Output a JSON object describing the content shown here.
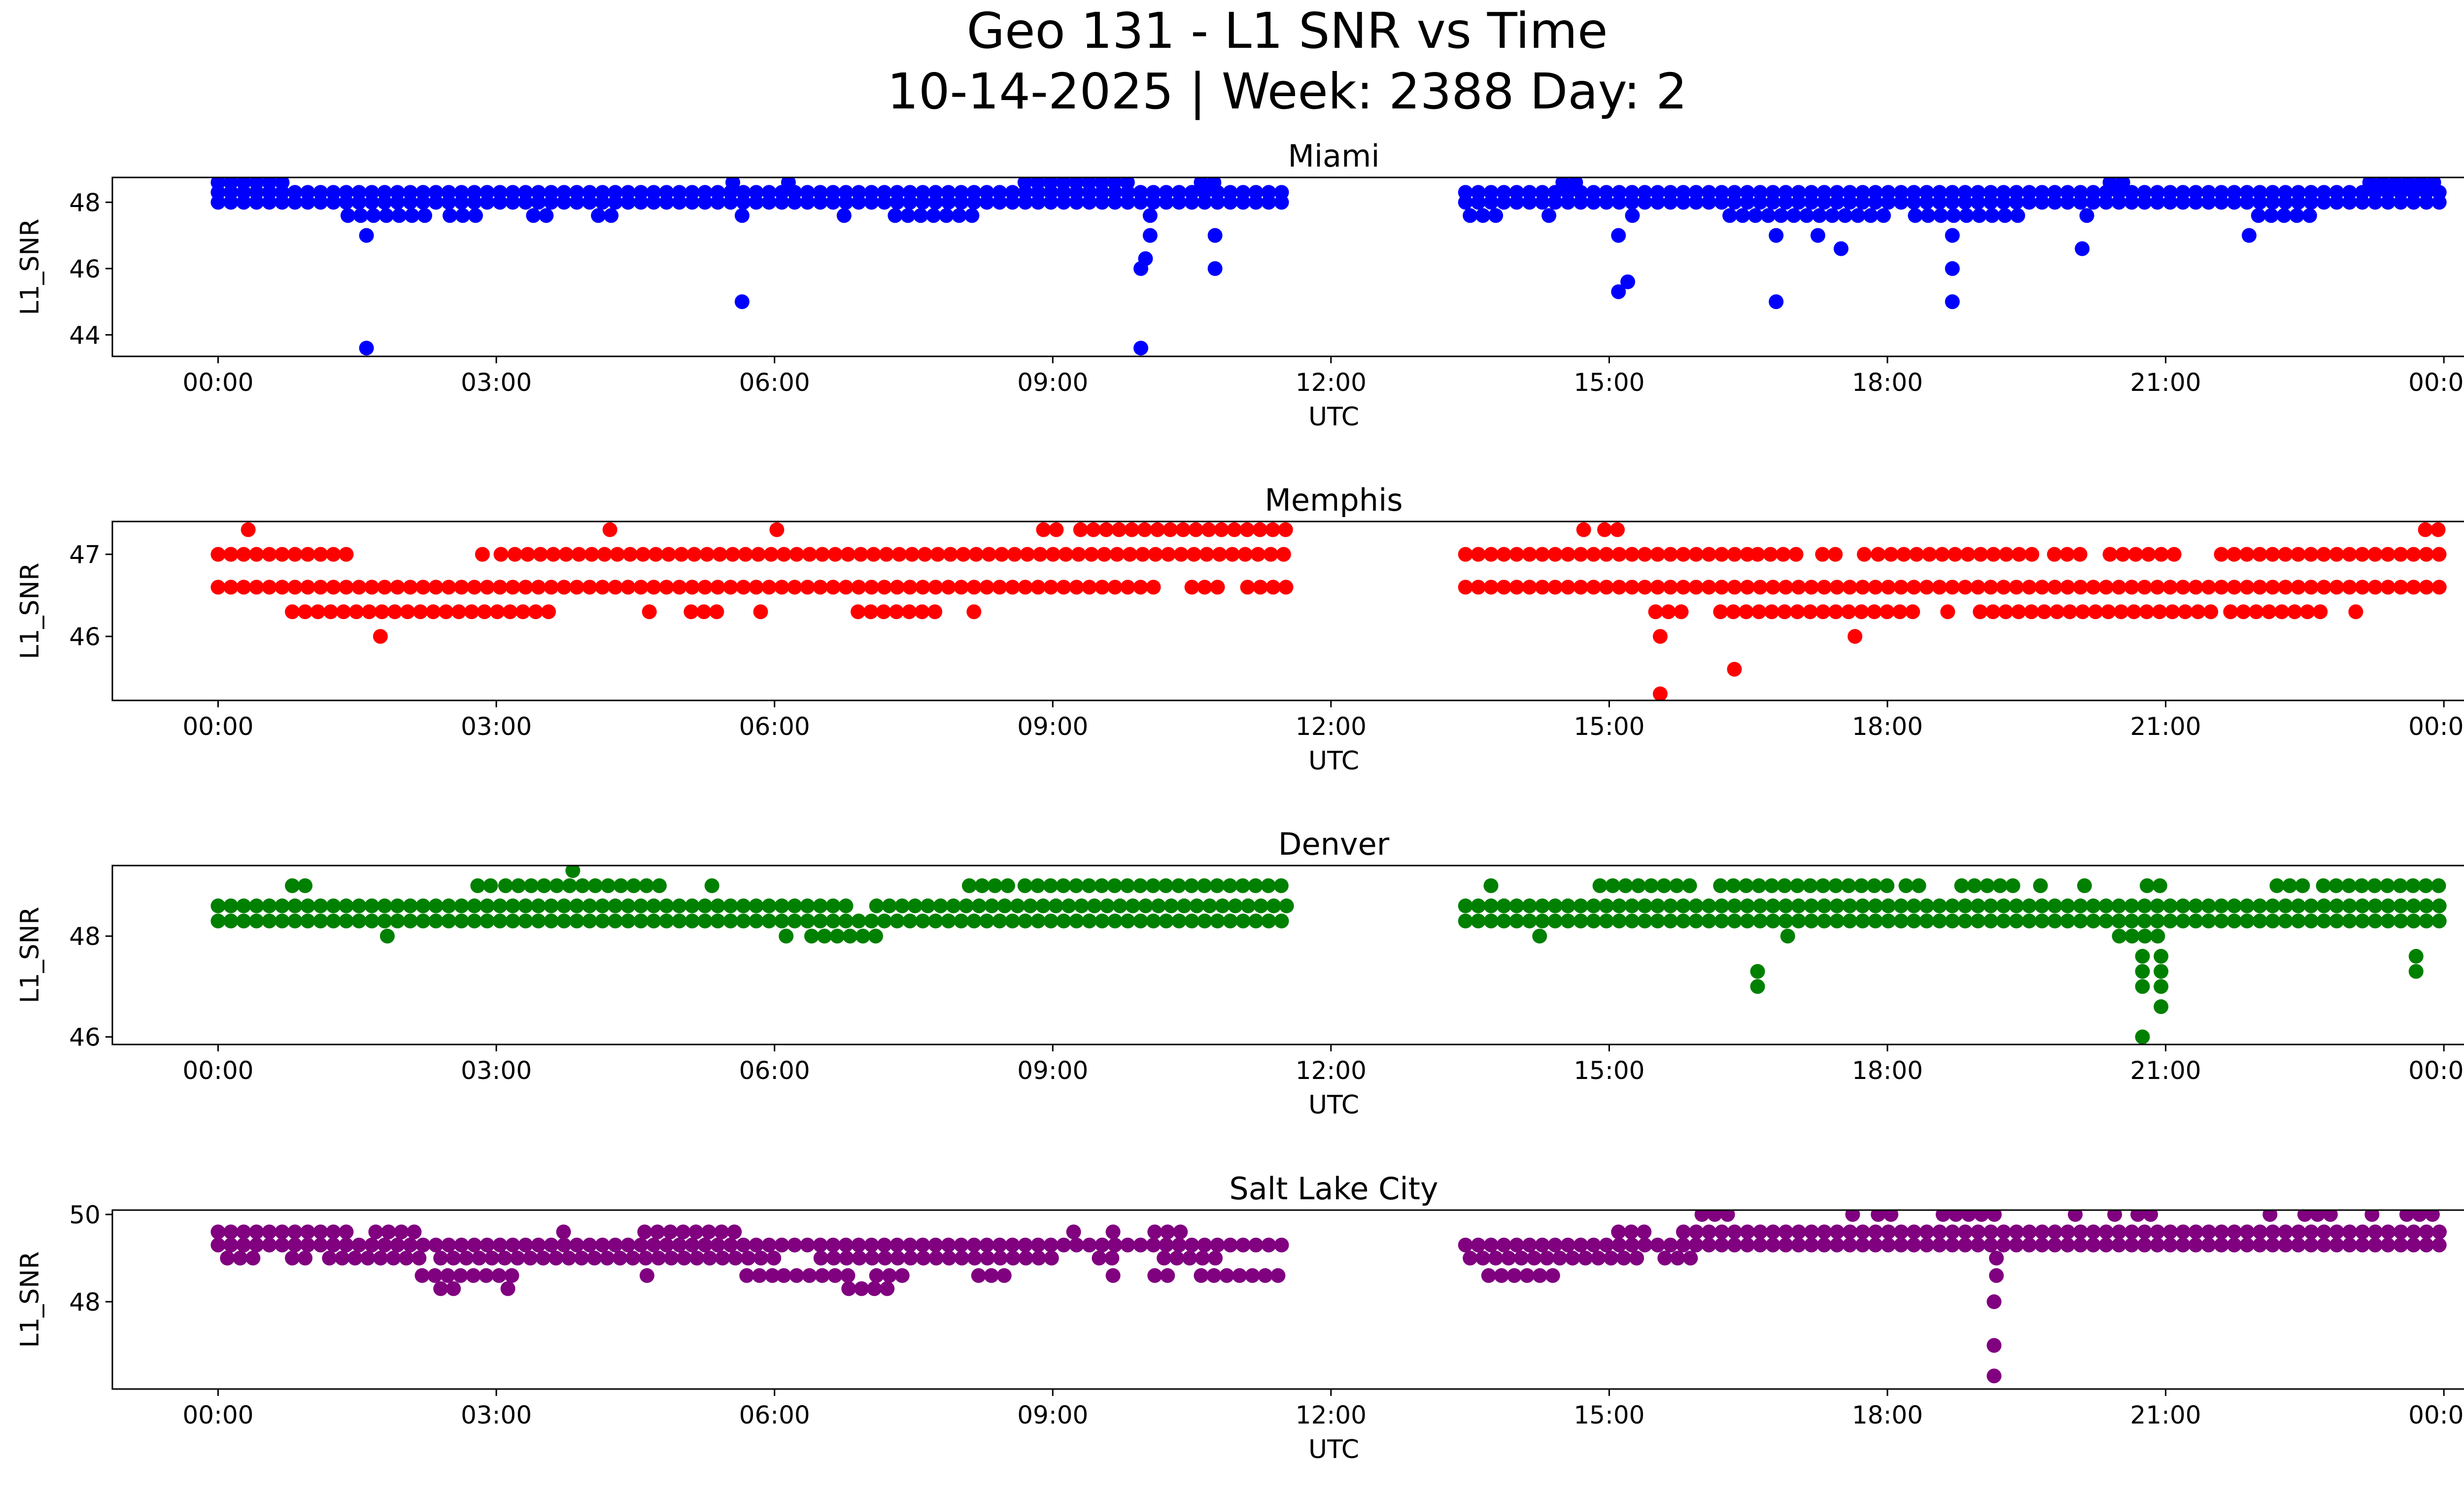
{
  "figure": {
    "title_line1": "Geo 131 - L1 SNR vs Time",
    "title_line2": "10-14-2025 | Week: 2388 Day: 2"
  },
  "chart_data": [
    {
      "type": "scatter",
      "title": "Miami",
      "xlabel": "UTC",
      "ylabel": "L1_SNR",
      "color": "#0000ff",
      "xlim_hours": [
        -1.14,
        25.2
      ],
      "ylim": [
        43.35,
        48.75
      ],
      "yticks": [
        44,
        46,
        48
      ],
      "xtick_labels": [
        "00:00",
        "03:00",
        "06:00",
        "09:00",
        "12:00",
        "15:00",
        "18:00",
        "21:00",
        "00:00"
      ],
      "bands": [
        {
          "value": 48.6,
          "segments": [
            [
              0.0,
              0.75
            ],
            [
              5.5,
              5.6
            ],
            [
              6.1,
              6.2
            ],
            [
              8.7,
              9.9
            ],
            [
              10.6,
              10.8
            ],
            [
              14.5,
              14.7
            ],
            [
              20.4,
              20.6
            ],
            [
              23.2,
              24.0
            ]
          ]
        },
        {
          "value": 48.3,
          "segments": [
            [
              0.0,
              11.55
            ],
            [
              13.45,
              24.0
            ]
          ]
        },
        {
          "value": 48.0,
          "segments": [
            [
              0.0,
              11.55
            ],
            [
              13.45,
              24.0
            ]
          ]
        },
        {
          "value": 47.6,
          "segments": [
            [
              1.4,
              2.3
            ],
            [
              2.5,
              2.9
            ],
            [
              3.4,
              3.6
            ],
            [
              4.1,
              4.3
            ],
            [
              5.6,
              5.7
            ],
            [
              6.7,
              6.8
            ],
            [
              7.3,
              8.2
            ],
            [
              10.0,
              10.1
            ],
            [
              13.5,
              13.8
            ],
            [
              14.3,
              14.4
            ],
            [
              15.2,
              15.3
            ],
            [
              16.3,
              18.0
            ],
            [
              18.3,
              19.5
            ],
            [
              20.1,
              20.2
            ],
            [
              22.0,
              22.6
            ]
          ]
        }
      ],
      "outliers": [
        {
          "t": 1.6,
          "v": 43.6
        },
        {
          "t": 1.6,
          "v": 47.0
        },
        {
          "t": 5.65,
          "v": 45.0
        },
        {
          "t": 9.95,
          "v": 43.6
        },
        {
          "t": 9.95,
          "v": 46.0
        },
        {
          "t": 10.0,
          "v": 46.3
        },
        {
          "t": 10.05,
          "v": 47.0
        },
        {
          "t": 10.75,
          "v": 46.0
        },
        {
          "t": 10.75,
          "v": 47.0
        },
        {
          "t": 15.1,
          "v": 45.3
        },
        {
          "t": 15.2,
          "v": 45.6
        },
        {
          "t": 15.1,
          "v": 47.0
        },
        {
          "t": 16.8,
          "v": 45.0
        },
        {
          "t": 16.8,
          "v": 47.0
        },
        {
          "t": 17.25,
          "v": 47.0
        },
        {
          "t": 17.5,
          "v": 46.6
        },
        {
          "t": 18.7,
          "v": 45.0
        },
        {
          "t": 18.7,
          "v": 46.0
        },
        {
          "t": 18.7,
          "v": 47.0
        },
        {
          "t": 20.1,
          "v": 46.6
        },
        {
          "t": 21.9,
          "v": 47.0
        }
      ]
    },
    {
      "type": "scatter",
      "title": "Memphis",
      "xlabel": "UTC",
      "ylabel": "L1_SNR",
      "color": "#ff0000",
      "xlim_hours": [
        -1.14,
        25.2
      ],
      "ylim": [
        45.22,
        47.4
      ],
      "yticks": [
        46,
        47
      ],
      "xtick_labels": [
        "00:00",
        "03:00",
        "06:00",
        "09:00",
        "12:00",
        "15:00",
        "18:00",
        "21:00",
        "00:00"
      ],
      "bands": [
        {
          "value": 47.3,
          "segments": [
            [
              0.3,
              0.35
            ],
            [
              4.2,
              4.25
            ],
            [
              6.0,
              6.05
            ],
            [
              8.9,
              9.1
            ],
            [
              9.3,
              11.55
            ],
            [
              14.7,
              14.75
            ],
            [
              14.95,
              15.15
            ],
            [
              23.8,
              24.0
            ]
          ]
        },
        {
          "value": 47.0,
          "segments": [
            [
              0.0,
              1.4
            ],
            [
              2.8,
              2.9
            ],
            [
              3.0,
              3.1
            ],
            [
              3.2,
              11.55
            ],
            [
              13.45,
              16.5
            ],
            [
              16.6,
              17.1
            ],
            [
              17.3,
              17.5
            ],
            [
              17.7,
              17.8
            ],
            [
              17.9,
              19.6
            ],
            [
              19.8,
              20.1
            ],
            [
              20.4,
              21.2
            ],
            [
              21.6,
              24.0
            ]
          ]
        },
        {
          "value": 46.6,
          "segments": [
            [
              0.0,
              10.1
            ],
            [
              10.5,
              10.9
            ],
            [
              11.1,
              11.55
            ],
            [
              13.45,
              24.0
            ]
          ]
        },
        {
          "value": 46.3,
          "segments": [
            [
              0.8,
              3.6
            ],
            [
              4.6,
              4.7
            ],
            [
              5.1,
              5.4
            ],
            [
              5.8,
              5.9
            ],
            [
              6.9,
              7.8
            ],
            [
              8.1,
              8.2
            ],
            [
              15.5,
              15.8
            ],
            [
              16.2,
              18.4
            ],
            [
              18.6,
              18.7
            ],
            [
              19.0,
              21.6
            ],
            [
              21.7,
              22.8
            ],
            [
              23.0,
              23.1
            ]
          ]
        }
      ],
      "outliers": [
        {
          "t": 1.75,
          "v": 46.0
        },
        {
          "t": 15.55,
          "v": 46.0
        },
        {
          "t": 15.55,
          "v": 45.3
        },
        {
          "t": 16.35,
          "v": 45.6
        },
        {
          "t": 17.65,
          "v": 46.0
        }
      ]
    },
    {
      "type": "scatter",
      "title": "Denver",
      "xlabel": "UTC",
      "ylabel": "L1_SNR",
      "color": "#008000",
      "xlim_hours": [
        -1.14,
        25.2
      ],
      "ylim": [
        45.85,
        49.4
      ],
      "yticks": [
        46,
        48
      ],
      "xtick_labels": [
        "00:00",
        "03:00",
        "06:00",
        "09:00",
        "12:00",
        "15:00",
        "18:00",
        "21:00",
        "00:00"
      ],
      "bands": [
        {
          "value": 49.3,
          "segments": [
            [
              3.8,
              3.85
            ]
          ]
        },
        {
          "value": 49.0,
          "segments": [
            [
              0.8,
              1.0
            ],
            [
              2.8,
              3.0
            ],
            [
              3.1,
              4.8
            ],
            [
              5.3,
              5.35
            ],
            [
              8.1,
              8.6
            ],
            [
              8.7,
              11.55
            ],
            [
              13.7,
              13.75
            ],
            [
              14.9,
              16.0
            ],
            [
              16.2,
              18.0
            ],
            [
              18.2,
              18.4
            ],
            [
              18.8,
              19.4
            ],
            [
              19.6,
              19.7
            ],
            [
              20.1,
              20.15
            ],
            [
              20.8,
              21.0
            ],
            [
              22.2,
              22.6
            ],
            [
              22.7,
              24.0
            ]
          ]
        },
        {
          "value": 48.6,
          "segments": [
            [
              0.0,
              6.8
            ],
            [
              7.1,
              11.55
            ],
            [
              13.45,
              24.0
            ]
          ]
        },
        {
          "value": 48.3,
          "segments": [
            [
              0.0,
              11.55
            ],
            [
              13.45,
              24.0
            ]
          ]
        },
        {
          "value": 48.0,
          "segments": [
            [
              1.8,
              1.85
            ],
            [
              6.1,
              6.15
            ],
            [
              6.4,
              7.2
            ],
            [
              14.2,
              14.3
            ],
            [
              16.9,
              16.95
            ],
            [
              20.5,
              21.0
            ]
          ]
        }
      ],
      "outliers": [
        {
          "t": 16.6,
          "v": 47.3
        },
        {
          "t": 16.6,
          "v": 47.0
        },
        {
          "t": 20.75,
          "v": 47.6
        },
        {
          "t": 20.75,
          "v": 47.3
        },
        {
          "t": 20.75,
          "v": 47.0
        },
        {
          "t": 20.75,
          "v": 46.0
        },
        {
          "t": 20.95,
          "v": 47.6
        },
        {
          "t": 20.95,
          "v": 47.3
        },
        {
          "t": 20.95,
          "v": 47.0
        },
        {
          "t": 20.95,
          "v": 46.6
        },
        {
          "t": 23.7,
          "v": 47.6
        },
        {
          "t": 23.7,
          "v": 47.3
        }
      ]
    },
    {
      "type": "scatter",
      "title": "Salt Lake City",
      "xlabel": "UTC",
      "ylabel": "L1_SNR",
      "color": "#800080",
      "xlim_hours": [
        -1.14,
        25.2
      ],
      "ylim": [
        46.0,
        50.1
      ],
      "yticks": [
        48,
        50
      ],
      "xtick_labels": [
        "00:00",
        "03:00",
        "06:00",
        "09:00",
        "12:00",
        "15:00",
        "18:00",
        "21:00",
        "00:00"
      ],
      "bands": [
        {
          "value": 50.0,
          "segments": [
            [
              16.0,
              16.3
            ],
            [
              17.6,
              17.65
            ],
            [
              17.9,
              18.1
            ],
            [
              18.6,
              19.2
            ],
            [
              20.0,
              20.05
            ],
            [
              20.4,
              20.5
            ],
            [
              20.7,
              20.9
            ],
            [
              22.1,
              22.15
            ],
            [
              22.5,
              22.8
            ],
            [
              23.2,
              23.25
            ],
            [
              23.6,
              24.0
            ]
          ]
        },
        {
          "value": 49.6,
          "segments": [
            [
              0.0,
              1.4
            ],
            [
              1.7,
              2.2
            ],
            [
              3.7,
              3.75
            ],
            [
              4.6,
              5.6
            ],
            [
              9.2,
              9.25
            ],
            [
              9.6,
              9.7
            ],
            [
              10.1,
              10.5
            ],
            [
              15.1,
              15.5
            ],
            [
              15.8,
              24.0
            ]
          ]
        },
        {
          "value": 49.3,
          "segments": [
            [
              0.0,
              11.55
            ],
            [
              13.45,
              24.0
            ]
          ]
        },
        {
          "value": 49.0,
          "segments": [
            [
              0.1,
              0.5
            ],
            [
              0.8,
              1.0
            ],
            [
              1.2,
              2.3
            ],
            [
              2.4,
              6.0
            ],
            [
              6.5,
              9.0
            ],
            [
              9.5,
              9.7
            ],
            [
              10.2,
              10.8
            ],
            [
              13.5,
              15.4
            ],
            [
              15.6,
              15.9
            ],
            [
              19.15,
              19.2
            ]
          ]
        },
        {
          "value": 48.6,
          "segments": [
            [
              2.2,
              3.2
            ],
            [
              4.6,
              4.65
            ],
            [
              5.7,
              6.0
            ],
            [
              6.1,
              6.9
            ],
            [
              7.1,
              7.5
            ],
            [
              8.2,
              8.6
            ],
            [
              9.6,
              9.7
            ],
            [
              10.1,
              10.3
            ],
            [
              10.6,
              11.55
            ],
            [
              13.7,
              14.4
            ],
            [
              19.15,
              19.2
            ]
          ]
        },
        {
          "value": 48.3,
          "segments": [
            [
              2.4,
              2.55
            ],
            [
              3.1,
              3.15
            ],
            [
              6.8,
              7.3
            ]
          ]
        }
      ],
      "outliers": [
        {
          "t": 19.15,
          "v": 48.0
        },
        {
          "t": 19.15,
          "v": 47.0
        },
        {
          "t": 19.15,
          "v": 46.3
        }
      ]
    }
  ]
}
